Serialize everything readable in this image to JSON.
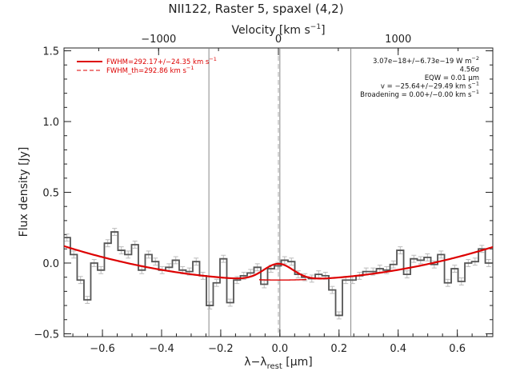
{
  "title": "NII122, Raster 5, spaxel (4,2)",
  "chart_data": {
    "type": "line",
    "title": "NII122, Raster 5, spaxel (4,2)",
    "xlabel": "λ−λ",
    "xlabel_sub": "rest",
    "xlabel_unit": " [μm]",
    "ylabel": "Flux density [Jy]",
    "top_axis_label": "Velocity [km s",
    "top_axis_label_sup": "−1",
    "top_axis_label_end": "]",
    "xlim": [
      -0.73,
      0.72
    ],
    "ylim": [
      -0.52,
      1.52
    ],
    "x_ticks": [
      -0.6,
      -0.4,
      -0.2,
      0.0,
      0.2,
      0.4,
      0.6
    ],
    "x_tick_labels": [
      "−0.6",
      "−0.4",
      "−0.2",
      "0.0",
      "0.2",
      "0.4",
      "0.6"
    ],
    "y_ticks": [
      -0.5,
      0.0,
      0.5,
      1.0,
      1.5
    ],
    "y_tick_labels": [
      "−0.5",
      "0.0",
      "0.5",
      "1.0",
      "1.5"
    ],
    "top_ticks": [
      -1000,
      0,
      1000
    ],
    "top_tick_labels": [
      "−1000",
      "0",
      "1000"
    ],
    "vertical_lines": [
      -0.24,
      0.0,
      0.24
    ],
    "rest_line": -0.005,
    "legend": [
      {
        "label": "FWHM=292.17+/−24.35 km s",
        "sup": "−1",
        "style": "solid",
        "color": "#dd0000"
      },
      {
        "label": "FWHM_th=292.86 km s",
        "sup": "−1",
        "style": "dashed",
        "color": "#dd0000"
      }
    ],
    "annotations": [
      {
        "text": "3.07e−18+/−6.73e−19 W m",
        "sup": "−2"
      },
      {
        "text": "4.56σ",
        "sup": ""
      },
      {
        "text": "EQW = 0.01 μm",
        "sup": ""
      },
      {
        "text": "v = −25.64+/−29.49 km s",
        "sup": "−1"
      },
      {
        "text": "Broadening = 0.00+/−0.00 km s",
        "sup": "−1"
      }
    ],
    "series": [
      {
        "style": "step",
        "x": [
          -0.72,
          -0.697,
          -0.674,
          -0.651,
          -0.628,
          -0.605,
          -0.582,
          -0.559,
          -0.536,
          -0.513,
          -0.49,
          -0.467,
          -0.444,
          -0.421,
          -0.398,
          -0.375,
          -0.352,
          -0.329,
          -0.306,
          -0.283,
          -0.26,
          -0.237,
          -0.214,
          -0.191,
          -0.168,
          -0.145,
          -0.122,
          -0.099,
          -0.076,
          -0.053,
          -0.03,
          -0.007,
          0.016,
          0.039,
          0.062,
          0.085,
          0.108,
          0.131,
          0.154,
          0.177,
          0.2,
          0.223,
          0.246,
          0.269,
          0.292,
          0.315,
          0.338,
          0.361,
          0.384,
          0.407,
          0.43,
          0.453,
          0.476,
          0.499,
          0.522,
          0.545,
          0.568,
          0.591,
          0.614,
          0.637,
          0.66,
          0.683,
          0.706
        ],
        "y": [
          0.18,
          0.06,
          -0.12,
          -0.26,
          0.0,
          -0.05,
          0.14,
          0.22,
          0.09,
          0.06,
          0.13,
          -0.05,
          0.06,
          0.01,
          -0.05,
          -0.03,
          0.02,
          -0.05,
          -0.06,
          0.01,
          -0.09,
          -0.3,
          -0.14,
          0.03,
          -0.28,
          -0.12,
          -0.09,
          -0.07,
          -0.03,
          -0.15,
          -0.04,
          -0.02,
          0.02,
          0.01,
          -0.08,
          -0.1,
          -0.11,
          -0.08,
          -0.09,
          -0.19,
          -0.37,
          -0.12,
          -0.12,
          -0.09,
          -0.06,
          -0.06,
          -0.04,
          -0.05,
          -0.01,
          0.09,
          -0.08,
          0.03,
          0.02,
          0.04,
          -0.01,
          0.06,
          -0.14,
          -0.04,
          -0.13,
          0.0,
          0.01,
          0.1,
          0.0
        ],
        "err": 0.025,
        "color": "#555555"
      },
      {
        "style": "line",
        "model": "fit",
        "center": -0.005,
        "amplitude": 0.115,
        "sigma": 0.05,
        "baseline_poly": [
          -0.12,
          0.0,
          0.45
        ],
        "x_range": [
          -0.73,
          0.72
        ],
        "color": "#dd0000"
      },
      {
        "style": "line",
        "model": "baseline",
        "baseline_poly": [
          -0.12,
          0.0,
          0.45
        ],
        "x_range": [
          -0.07,
          0.09
        ],
        "color": "#dd0000"
      }
    ]
  }
}
